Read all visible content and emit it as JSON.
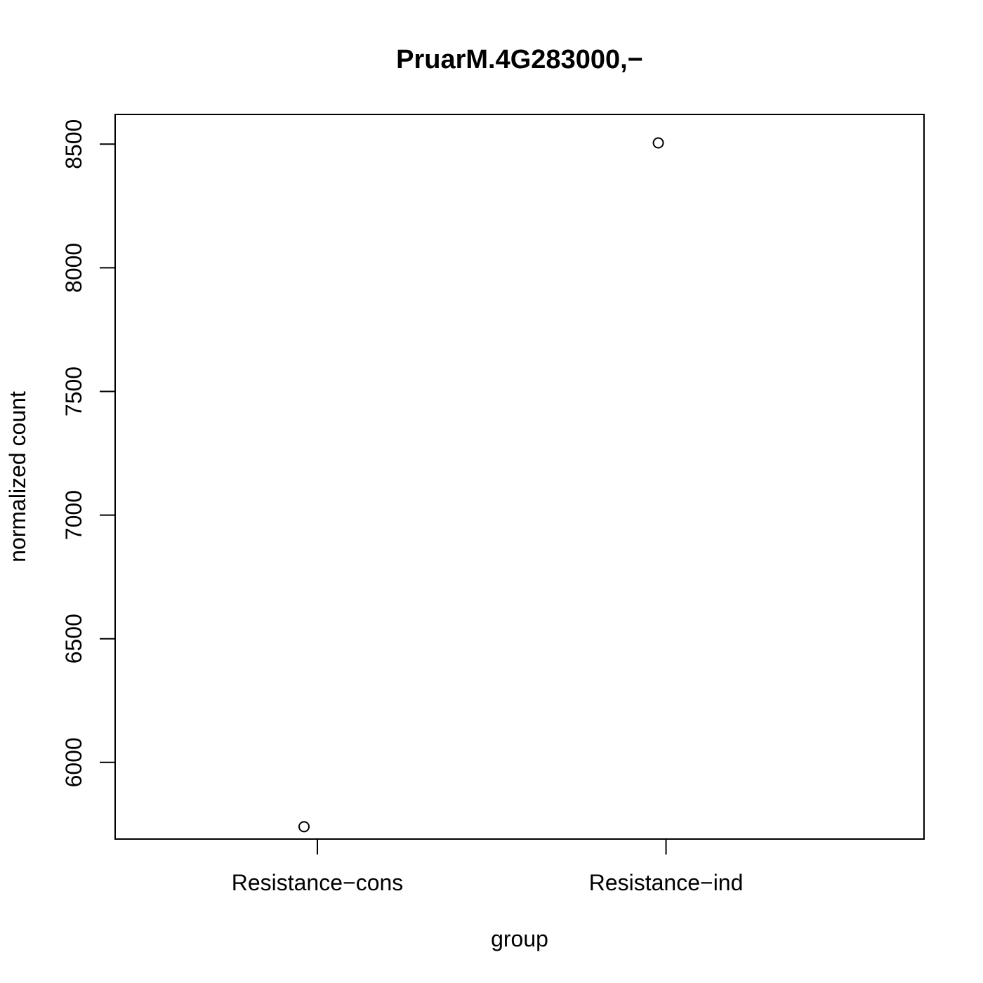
{
  "chart_data": {
    "type": "scatter",
    "title": "PruarM.4G283000,−",
    "xlabel": "group",
    "ylabel": "normalized count",
    "categories": [
      "Resistance−cons",
      "Resistance−ind"
    ],
    "points": [
      {
        "category": "Resistance−cons",
        "value": 5740
      },
      {
        "category": "Resistance−ind",
        "value": 8505
      }
    ],
    "yticks": [
      6000,
      6500,
      7000,
      7500,
      8000,
      8500
    ],
    "ylim": [
      5690,
      8620
    ],
    "grid": false,
    "legend": "none"
  }
}
